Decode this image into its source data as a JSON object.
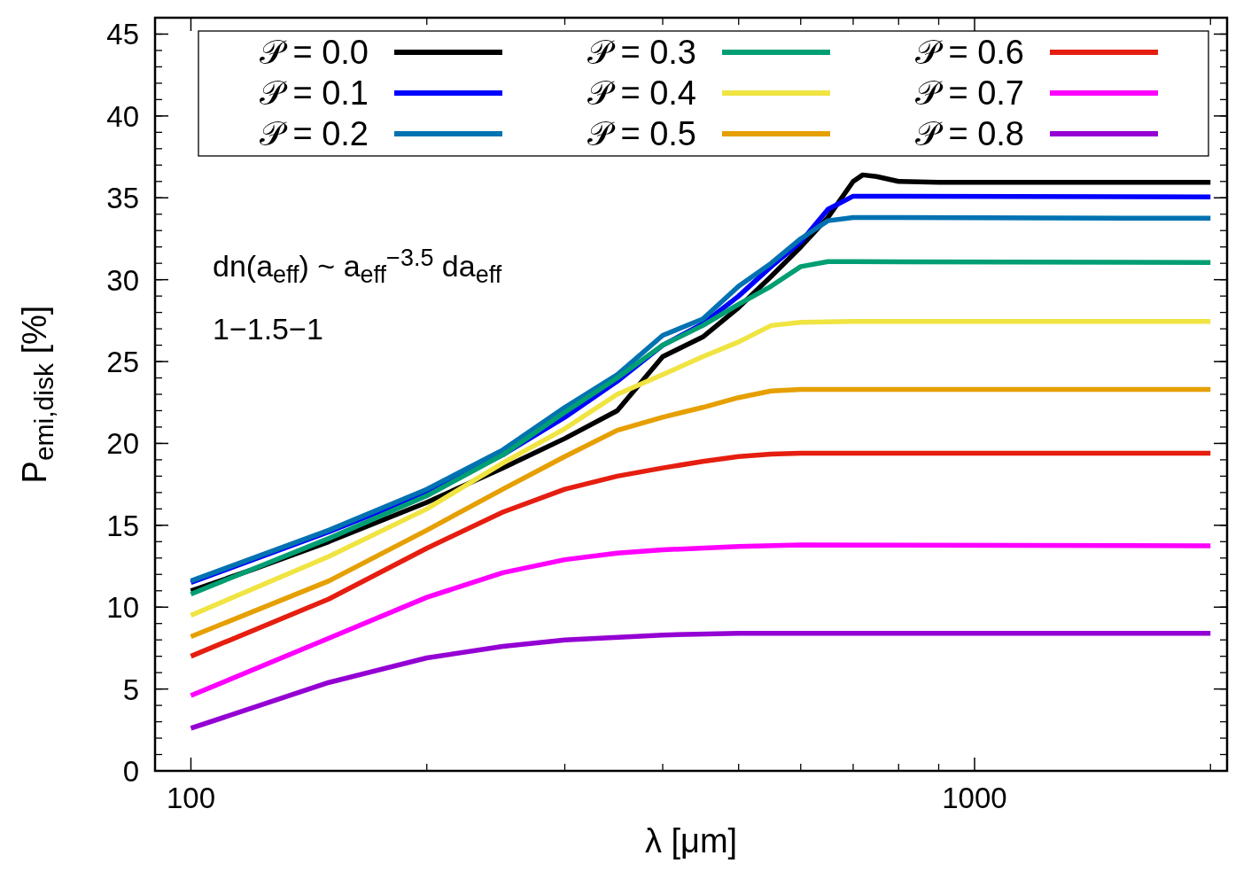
{
  "chart_data": {
    "type": "line",
    "xlabel": "λ [μm]",
    "ylabel": "P$_{emi,disk}$ [%]",
    "log": "x",
    "xlim": [
      90,
      2100
    ],
    "ylim": [
      0,
      46
    ],
    "xticks": [
      100,
      1000
    ],
    "yticks": [
      0,
      5,
      10,
      15,
      20,
      25,
      30,
      35,
      40,
      45
    ],
    "grid": false,
    "legend": "top",
    "line_style": "solid",
    "marker": "none",
    "annotations": [
      "dn(a$_{eff}$) ~ a$_{eff}$$^{−3.5}$ da$_{eff}$",
      "1−1.5−1"
    ],
    "series": [
      {
        "name": "𝒫 = 0.0",
        "color": "#000000",
        "x": [
          100,
          120,
          150,
          200,
          250,
          300,
          350,
          400,
          450,
          500,
          550,
          600,
          650,
          700,
          720,
          750,
          800,
          900,
          1000,
          2000
        ],
        "values": [
          11.0,
          12.3,
          14.0,
          16.4,
          18.5,
          20.3,
          22.0,
          25.3,
          26.5,
          28.3,
          30.2,
          32.0,
          33.8,
          36.0,
          36.4,
          36.3,
          36.0,
          35.95,
          35.95,
          35.95
        ]
      },
      {
        "name": "𝒫 = 0.1",
        "color": "#0000ff",
        "x": [
          100,
          150,
          200,
          250,
          300,
          350,
          400,
          450,
          500,
          550,
          600,
          650,
          700,
          800,
          2000
        ],
        "values": [
          11.5,
          14.6,
          17.0,
          19.3,
          21.6,
          23.8,
          26.0,
          27.3,
          29.0,
          30.8,
          32.3,
          34.3,
          35.1,
          35.1,
          35.05
        ]
      },
      {
        "name": "𝒫 = 0.2",
        "color": "#0072b2",
        "x": [
          100,
          150,
          200,
          250,
          300,
          350,
          400,
          450,
          500,
          550,
          600,
          650,
          700,
          2000
        ],
        "values": [
          11.6,
          14.7,
          17.2,
          19.6,
          22.2,
          24.2,
          26.6,
          27.6,
          29.6,
          31.0,
          32.5,
          33.6,
          33.8,
          33.75
        ]
      },
      {
        "name": "𝒫 = 0.3",
        "color": "#009e73",
        "x": [
          100,
          150,
          200,
          250,
          300,
          350,
          400,
          450,
          500,
          550,
          600,
          650,
          700,
          2000
        ],
        "values": [
          10.8,
          14.2,
          16.8,
          19.3,
          21.9,
          24.0,
          26.0,
          27.2,
          28.5,
          29.6,
          30.8,
          31.1,
          31.1,
          31.05
        ]
      },
      {
        "name": "𝒫 = 0.4",
        "color": "#f0e442",
        "x": [
          100,
          150,
          200,
          250,
          300,
          350,
          400,
          450,
          500,
          550,
          600,
          700,
          2000
        ],
        "values": [
          9.5,
          13.1,
          16.0,
          18.8,
          20.9,
          23.0,
          24.2,
          25.3,
          26.2,
          27.2,
          27.4,
          27.45,
          27.45
        ]
      },
      {
        "name": "𝒫 = 0.5",
        "color": "#e69f00",
        "x": [
          100,
          150,
          200,
          250,
          300,
          350,
          400,
          450,
          500,
          550,
          600,
          2000
        ],
        "values": [
          8.2,
          11.6,
          14.7,
          17.2,
          19.2,
          20.8,
          21.6,
          22.2,
          22.8,
          23.2,
          23.3,
          23.3
        ]
      },
      {
        "name": "𝒫 = 0.6",
        "color": "#e51e10",
        "x": [
          100,
          150,
          200,
          250,
          300,
          350,
          400,
          450,
          500,
          550,
          600,
          2000
        ],
        "values": [
          7.0,
          10.5,
          13.6,
          15.8,
          17.2,
          18.0,
          18.5,
          18.9,
          19.2,
          19.35,
          19.4,
          19.4
        ]
      },
      {
        "name": "𝒫 = 0.7",
        "color": "#ff00ff",
        "x": [
          100,
          150,
          200,
          250,
          300,
          350,
          400,
          500,
          600,
          2000
        ],
        "values": [
          4.6,
          8.1,
          10.6,
          12.1,
          12.9,
          13.3,
          13.5,
          13.7,
          13.8,
          13.75
        ]
      },
      {
        "name": "𝒫 = 0.8",
        "color": "#9400d3",
        "x": [
          100,
          150,
          200,
          250,
          300,
          400,
          500,
          2000
        ],
        "values": [
          2.6,
          5.4,
          6.9,
          7.6,
          8.0,
          8.3,
          8.4,
          8.4
        ]
      }
    ]
  }
}
